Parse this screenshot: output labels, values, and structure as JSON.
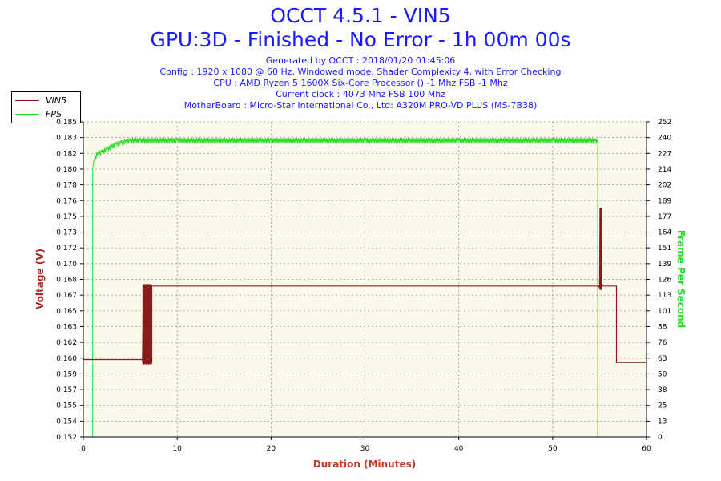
{
  "title": "OCCT 4.5.1 - VIN5",
  "subtitle": "GPU:3D - Finished - No Error - 1h 00m 00s",
  "info_lines": [
    "Generated by OCCT : 2018/01/20 01:45:06",
    "Config : 1920 x 1080 @ 60 Hz, Windowed mode, Shader Complexity 4, with Error Checking",
    "CPU : AMD Ryzen 5 1600X Six-Core Processor () -1 Mhz FSB -1 Mhz",
    "Current clock : 4073 Mhz FSB 100 Mhz",
    "MotherBoard : Micro-Star International Co., Ltd: A320M PRO-VD PLUS (MS-7B38)"
  ],
  "legend": [
    {
      "name": "VIN5",
      "color": "#8b1a1a"
    },
    {
      "name": "FPS",
      "color": "#22dd22"
    }
  ],
  "colors": {
    "title": "#1a1aff",
    "vin5": "#8b1a1a",
    "fps": "#22dd22",
    "plot_bg": "#fdf8ec",
    "grid": "#8c8c8c"
  },
  "chart_data": {
    "type": "line",
    "xlabel": "Duration (Minutes)",
    "ylabel_left": "Voltage (V)",
    "ylabel_right": "Frame Per Second",
    "xlim": [
      0,
      60
    ],
    "ylim_left": [
      0.152,
      0.185
    ],
    "ylim_right": [
      0,
      252
    ],
    "x_ticks": [
      "0",
      "10",
      "20",
      "30",
      "40",
      "50",
      "60"
    ],
    "y_ticks_left": [
      "0.152",
      "0.154",
      "0.155",
      "0.157",
      "0.159",
      "0.160",
      "0.162",
      "0.163",
      "0.165",
      "0.167",
      "0.168",
      "0.170",
      "0.172",
      "0.173",
      "0.175",
      "0.176",
      "0.178",
      "0.180",
      "0.182",
      "0.183",
      "0.185"
    ],
    "y_ticks_right": [
      "0",
      "13",
      "25",
      "38",
      "50",
      "63",
      "76",
      "88",
      "101",
      "113",
      "126",
      "139",
      "151",
      "164",
      "177",
      "189",
      "202",
      "214",
      "227",
      "240",
      "252"
    ],
    "grid": true,
    "legend_position": "top-left",
    "series": [
      {
        "name": "VIN5",
        "axis": "left",
        "x": [
          0,
          6.3,
          6.3,
          6.4,
          6.5,
          6.6,
          6.7,
          6.8,
          6.9,
          7.0,
          7.1,
          7.2,
          7.3,
          7.3,
          54.9,
          55.0,
          55.05,
          55.1,
          55.15,
          55.2,
          55.3,
          55.3,
          56.8,
          56.8,
          60
        ],
        "values": [
          0.1601,
          0.1601,
          0.1598,
          0.1679,
          0.1596,
          0.168,
          0.1596,
          0.1679,
          0.1597,
          0.168,
          0.1596,
          0.1679,
          0.1597,
          0.1678,
          0.1678,
          0.1676,
          0.1757,
          0.1674,
          0.176,
          0.1676,
          0.168,
          0.1678,
          0.1678,
          0.1598,
          0.1598
        ]
      },
      {
        "name": "FPS",
        "axis": "right",
        "x": [
          0,
          1.0,
          1.0,
          1.2,
          1.5,
          2.0,
          2.5,
          3.0,
          3.5,
          4.0,
          4.5,
          5.0,
          6.0,
          10,
          20,
          30,
          40,
          50,
          54.5,
          54.8,
          54.8,
          60
        ],
        "values": [
          0,
          0,
          215,
          222,
          226,
          228,
          230,
          232,
          234,
          235,
          236,
          237,
          237,
          237,
          237,
          237,
          237,
          237,
          237,
          236,
          0,
          0
        ],
        "jitter": 2
      }
    ]
  }
}
